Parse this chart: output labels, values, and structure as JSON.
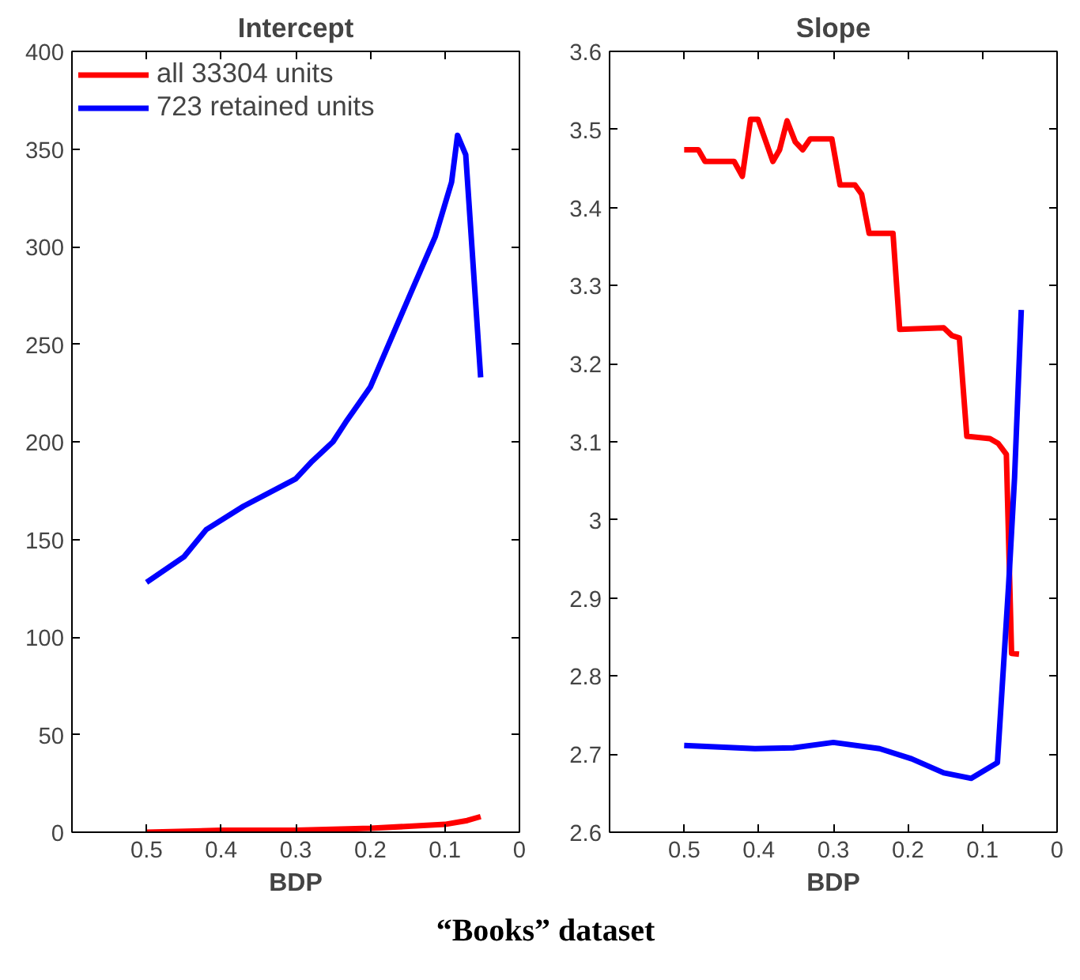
{
  "chart_data": [
    {
      "type": "line",
      "title": "Intercept",
      "xlabel": "BDP",
      "xlim": [
        0.6,
        0
      ],
      "xticks": [
        0.5,
        0.4,
        0.3,
        0.2,
        0.1,
        0
      ],
      "ylim": [
        0,
        400
      ],
      "yticks": [
        0,
        50,
        100,
        150,
        200,
        250,
        300,
        350,
        400
      ],
      "grid": false,
      "legend": "top left",
      "line_style": "solid",
      "marker": "none",
      "annotations": [
        "“Books” dataset"
      ],
      "series": [
        {
          "name": "all 33304 units",
          "color": "#ff0000",
          "x": [
            0.5,
            0.4,
            0.3,
            0.2,
            0.1,
            0.07,
            0.052
          ],
          "values": [
            0,
            1,
            1,
            2,
            4,
            6,
            8
          ]
        },
        {
          "name": "723 retained units",
          "color": "#0000ff",
          "x": [
            0.5,
            0.45,
            0.42,
            0.37,
            0.3,
            0.278,
            0.25,
            0.233,
            0.2,
            0.146,
            0.113,
            0.091,
            0.083,
            0.072,
            0.052
          ],
          "values": [
            128,
            141,
            155,
            167,
            181,
            190,
            200,
            210,
            228,
            276,
            305,
            333,
            357,
            347,
            233
          ]
        }
      ]
    },
    {
      "type": "line",
      "title": "Slope",
      "xlabel": "BDP",
      "xlim": [
        0.6,
        0
      ],
      "xticks": [
        0.5,
        0.4,
        0.3,
        0.2,
        0.1,
        0
      ],
      "ylim": [
        2.6,
        3.6
      ],
      "yticks": [
        2.6,
        2.7,
        2.8,
        2.9,
        3,
        3.1,
        3.2,
        3.3,
        3.4,
        3.5,
        3.6
      ],
      "grid": false,
      "line_style": "solid",
      "marker": "none",
      "series": [
        {
          "color": "#ff0000",
          "x": [
            0.5,
            0.481,
            0.472,
            0.433,
            0.422,
            0.411,
            0.401,
            0.381,
            0.372,
            0.362,
            0.351,
            0.341,
            0.331,
            0.302,
            0.291,
            0.271,
            0.262,
            0.252,
            0.22,
            0.211,
            0.152,
            0.141,
            0.131,
            0.121,
            0.09,
            0.079,
            0.068,
            0.061,
            0.051
          ],
          "values": [
            3.474,
            3.474,
            3.459,
            3.459,
            3.44,
            3.513,
            3.513,
            3.459,
            3.474,
            3.511,
            3.484,
            3.474,
            3.488,
            3.488,
            3.429,
            3.429,
            3.417,
            3.367,
            3.367,
            3.244,
            3.246,
            3.236,
            3.233,
            3.107,
            3.104,
            3.098,
            3.084,
            2.829,
            2.828
          ]
        },
        {
          "color": "#0000ff",
          "x": [
            0.5,
            0.405,
            0.354,
            0.3,
            0.238,
            0.195,
            0.152,
            0.115,
            0.08,
            0.065,
            0.057,
            0.048
          ],
          "values": [
            2.711,
            2.707,
            2.708,
            2.715,
            2.707,
            2.694,
            2.676,
            2.669,
            2.689,
            2.916,
            3.054,
            3.269
          ]
        }
      ]
    }
  ]
}
